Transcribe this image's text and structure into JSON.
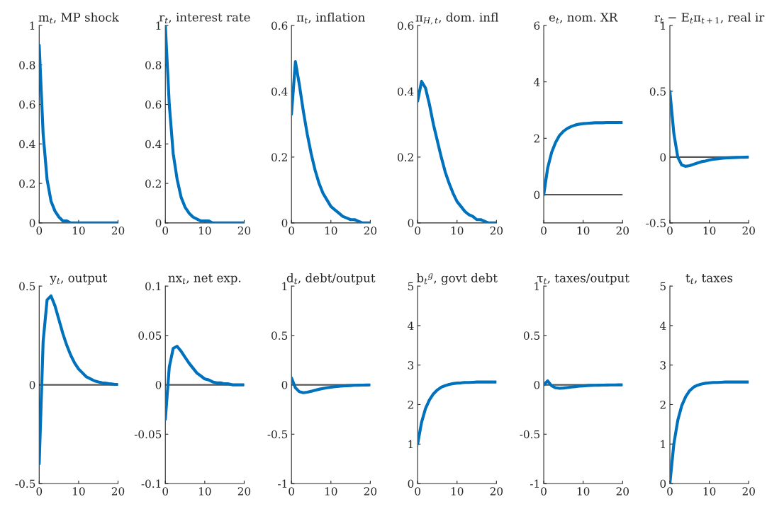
{
  "chart_data": [
    {
      "type": "line",
      "title": "m$_{t}$, MP shock",
      "x": [
        0,
        1,
        2,
        3,
        4,
        5,
        6,
        7,
        8,
        9,
        10,
        11,
        12,
        13,
        14,
        15,
        16,
        17,
        18,
        19,
        20
      ],
      "xlim": [
        0,
        20
      ],
      "xticks": [
        0,
        10,
        20
      ],
      "ylim": [
        0,
        1
      ],
      "yticks": [
        0,
        0.2,
        0.4,
        0.6,
        0.8,
        1
      ],
      "series": [
        {
          "color": "#0072bd",
          "values": [
            0.9,
            0.45,
            0.22,
            0.11,
            0.06,
            0.03,
            0.01,
            0.01,
            0,
            0,
            0,
            0,
            0,
            0,
            0,
            0,
            0,
            0,
            0,
            0,
            0
          ]
        }
      ]
    },
    {
      "type": "line",
      "title": "r$_{t}$, interest rate",
      "x": [
        0,
        1,
        2,
        3,
        4,
        5,
        6,
        7,
        8,
        9,
        10,
        11,
        12,
        13,
        14,
        15,
        16,
        17,
        18,
        19,
        20
      ],
      "xlim": [
        0,
        20
      ],
      "xticks": [
        0,
        10,
        20
      ],
      "ylim": [
        0,
        1
      ],
      "yticks": [
        0,
        0.2,
        0.4,
        0.6,
        0.8,
        1
      ],
      "series": [
        {
          "color": "#0072bd",
          "values": [
            1.0,
            0.6,
            0.35,
            0.22,
            0.13,
            0.08,
            0.05,
            0.03,
            0.02,
            0.01,
            0.01,
            0.01,
            0,
            0,
            0,
            0,
            0,
            0,
            0,
            0,
            0
          ]
        }
      ]
    },
    {
      "type": "line",
      "title": "π$_{t}$, inflation",
      "x": [
        0,
        1,
        2,
        3,
        4,
        5,
        6,
        7,
        8,
        9,
        10,
        11,
        12,
        13,
        14,
        15,
        16,
        17,
        18,
        19,
        20
      ],
      "xlim": [
        0,
        20
      ],
      "xticks": [
        0,
        10,
        20
      ],
      "ylim": [
        0,
        0.6
      ],
      "yticks": [
        0,
        0.2,
        0.4,
        0.6
      ],
      "series": [
        {
          "color": "#0072bd",
          "values": [
            0.33,
            0.49,
            0.42,
            0.34,
            0.27,
            0.21,
            0.16,
            0.12,
            0.09,
            0.07,
            0.05,
            0.04,
            0.03,
            0.02,
            0.015,
            0.01,
            0.01,
            0.005,
            0,
            0,
            0
          ]
        }
      ]
    },
    {
      "type": "line",
      "title": "π$_{H,t}$, dom. infl",
      "x": [
        0,
        1,
        2,
        3,
        4,
        5,
        6,
        7,
        8,
        9,
        10,
        11,
        12,
        13,
        14,
        15,
        16,
        17,
        18,
        19,
        20
      ],
      "xlim": [
        0,
        20
      ],
      "xticks": [
        0,
        10,
        20
      ],
      "ylim": [
        0,
        0.6
      ],
      "yticks": [
        0,
        0.2,
        0.4,
        0.6
      ],
      "series": [
        {
          "color": "#0072bd",
          "values": [
            0.37,
            0.43,
            0.41,
            0.36,
            0.3,
            0.25,
            0.2,
            0.155,
            0.12,
            0.09,
            0.065,
            0.05,
            0.035,
            0.025,
            0.02,
            0.01,
            0.01,
            0.005,
            0,
            0,
            0
          ]
        }
      ]
    },
    {
      "type": "line",
      "title": "e$_{t}$, nom. XR",
      "x": [
        0,
        1,
        2,
        3,
        4,
        5,
        6,
        7,
        8,
        9,
        10,
        11,
        12,
        13,
        14,
        15,
        16,
        17,
        18,
        19,
        20
      ],
      "xlim": [
        0,
        20
      ],
      "xticks": [
        0,
        10,
        20
      ],
      "ylim": [
        -1,
        6
      ],
      "yticks": [
        0,
        2,
        4,
        6
      ],
      "ref_lines": [
        {
          "axis": "y",
          "value": 0,
          "color": "#555555"
        }
      ],
      "series": [
        {
          "color": "#0072bd",
          "values": [
            0,
            0.95,
            1.5,
            1.85,
            2.1,
            2.25,
            2.35,
            2.42,
            2.47,
            2.5,
            2.52,
            2.53,
            2.54,
            2.55,
            2.55,
            2.55,
            2.56,
            2.56,
            2.56,
            2.56,
            2.56
          ]
        }
      ]
    },
    {
      "type": "line",
      "title": "r$_{t}$ − E$_{t}$π$_{t+1}$, real ir",
      "x": [
        0,
        1,
        2,
        3,
        4,
        5,
        6,
        7,
        8,
        9,
        10,
        11,
        12,
        13,
        14,
        15,
        16,
        17,
        18,
        19,
        20
      ],
      "xlim": [
        0,
        20
      ],
      "xticks": [
        0,
        10,
        20
      ],
      "ylim": [
        -0.5,
        1
      ],
      "yticks": [
        -0.5,
        0,
        0.5,
        1
      ],
      "ref_lines": [
        {
          "axis": "y",
          "value": 0,
          "color": "#555555"
        }
      ],
      "series": [
        {
          "color": "#0072bd",
          "values": [
            0.5,
            0.18,
            0.0,
            -0.06,
            -0.07,
            -0.065,
            -0.055,
            -0.045,
            -0.035,
            -0.03,
            -0.022,
            -0.017,
            -0.013,
            -0.01,
            -0.007,
            -0.005,
            -0.004,
            -0.003,
            -0.002,
            -0.001,
            0
          ]
        }
      ]
    },
    {
      "type": "line",
      "title": "y$_{t}$, output",
      "x": [
        0,
        1,
        2,
        3,
        4,
        5,
        6,
        7,
        8,
        9,
        10,
        11,
        12,
        13,
        14,
        15,
        16,
        17,
        18,
        19,
        20
      ],
      "xlim": [
        0,
        20
      ],
      "xticks": [
        0,
        10,
        20
      ],
      "ylim": [
        -0.5,
        0.5
      ],
      "yticks": [
        -0.5,
        0,
        0.5
      ],
      "ref_lines": [
        {
          "axis": "y",
          "value": 0,
          "color": "#555555"
        }
      ],
      "series": [
        {
          "color": "#0072bd",
          "values": [
            -0.4,
            0.22,
            0.43,
            0.45,
            0.4,
            0.33,
            0.26,
            0.2,
            0.15,
            0.11,
            0.08,
            0.06,
            0.04,
            0.03,
            0.02,
            0.015,
            0.01,
            0.008,
            0.005,
            0.003,
            0.002
          ]
        }
      ]
    },
    {
      "type": "line",
      "title": "nx$_{t}$, net exp.",
      "x": [
        0,
        1,
        2,
        3,
        4,
        5,
        6,
        7,
        8,
        9,
        10,
        11,
        12,
        13,
        14,
        15,
        16,
        17,
        18,
        19,
        20
      ],
      "xlim": [
        0,
        20
      ],
      "xticks": [
        0,
        10,
        20
      ],
      "ylim": [
        -0.1,
        0.1
      ],
      "yticks": [
        -0.1,
        -0.05,
        0,
        0.05,
        0.1
      ],
      "ref_lines": [
        {
          "axis": "y",
          "value": 0,
          "color": "#555555"
        }
      ],
      "series": [
        {
          "color": "#0072bd",
          "values": [
            -0.035,
            0.018,
            0.037,
            0.039,
            0.034,
            0.028,
            0.022,
            0.017,
            0.012,
            0.009,
            0.006,
            0.005,
            0.003,
            0.002,
            0.002,
            0.001,
            0.001,
            0,
            0,
            0,
            0
          ]
        }
      ]
    },
    {
      "type": "line",
      "title": "d$_{t}$, debt/output",
      "x": [
        0,
        1,
        2,
        3,
        4,
        5,
        6,
        7,
        8,
        9,
        10,
        11,
        12,
        13,
        14,
        15,
        16,
        17,
        18,
        19,
        20
      ],
      "xlim": [
        0,
        20
      ],
      "xticks": [
        0,
        10,
        20
      ],
      "ylim": [
        -1,
        1
      ],
      "yticks": [
        -1,
        -0.5,
        0,
        0.5,
        1
      ],
      "ref_lines": [
        {
          "axis": "y",
          "value": 0,
          "color": "#555555"
        }
      ],
      "series": [
        {
          "color": "#0072bd",
          "values": [
            0.07,
            -0.03,
            -0.07,
            -0.08,
            -0.075,
            -0.065,
            -0.055,
            -0.045,
            -0.037,
            -0.03,
            -0.024,
            -0.019,
            -0.015,
            -0.012,
            -0.009,
            -0.007,
            -0.005,
            -0.004,
            -0.003,
            -0.002,
            -0.001
          ]
        }
      ]
    },
    {
      "type": "line",
      "title": "b$_{t}$$^{g}$, govt debt",
      "x": [
        0,
        1,
        2,
        3,
        4,
        5,
        6,
        7,
        8,
        9,
        10,
        11,
        12,
        13,
        14,
        15,
        16,
        17,
        18,
        19,
        20
      ],
      "xlim": [
        0,
        20
      ],
      "xticks": [
        0,
        10,
        20
      ],
      "ylim": [
        0,
        5
      ],
      "yticks": [
        0,
        1,
        2,
        3,
        4,
        5
      ],
      "series": [
        {
          "color": "#0072bd",
          "values": [
            1.0,
            1.55,
            1.9,
            2.12,
            2.27,
            2.37,
            2.44,
            2.48,
            2.51,
            2.53,
            2.545,
            2.55,
            2.56,
            2.56,
            2.565,
            2.57,
            2.57,
            2.57,
            2.57,
            2.57,
            2.57
          ]
        }
      ]
    },
    {
      "type": "line",
      "title": "τ$_{t}$, taxes/output",
      "x": [
        0,
        1,
        2,
        3,
        4,
        5,
        6,
        7,
        8,
        9,
        10,
        11,
        12,
        13,
        14,
        15,
        16,
        17,
        18,
        19,
        20
      ],
      "xlim": [
        0,
        20
      ],
      "xticks": [
        0,
        10,
        20
      ],
      "ylim": [
        -1,
        1
      ],
      "yticks": [
        -1,
        -0.5,
        0,
        0.5,
        1
      ],
      "ref_lines": [
        {
          "axis": "y",
          "value": 0,
          "color": "#555555"
        }
      ],
      "series": [
        {
          "color": "#0072bd",
          "values": [
            0,
            0.04,
            -0.01,
            -0.03,
            -0.035,
            -0.033,
            -0.028,
            -0.023,
            -0.018,
            -0.014,
            -0.011,
            -0.008,
            -0.006,
            -0.005,
            -0.004,
            -0.003,
            -0.002,
            -0.001,
            -0.001,
            0,
            0
          ]
        }
      ]
    },
    {
      "type": "line",
      "title": "t$_{t}$, taxes",
      "x": [
        0,
        1,
        2,
        3,
        4,
        5,
        6,
        7,
        8,
        9,
        10,
        11,
        12,
        13,
        14,
        15,
        16,
        17,
        18,
        19,
        20
      ],
      "xlim": [
        0,
        20
      ],
      "xticks": [
        0,
        10,
        20
      ],
      "ylim": [
        0,
        5
      ],
      "yticks": [
        0,
        1,
        2,
        3,
        4,
        5
      ],
      "series": [
        {
          "color": "#0072bd",
          "values": [
            0,
            1.0,
            1.6,
            1.97,
            2.2,
            2.35,
            2.44,
            2.49,
            2.52,
            2.54,
            2.55,
            2.56,
            2.56,
            2.565,
            2.57,
            2.57,
            2.57,
            2.57,
            2.57,
            2.57,
            2.57
          ]
        }
      ]
    }
  ]
}
